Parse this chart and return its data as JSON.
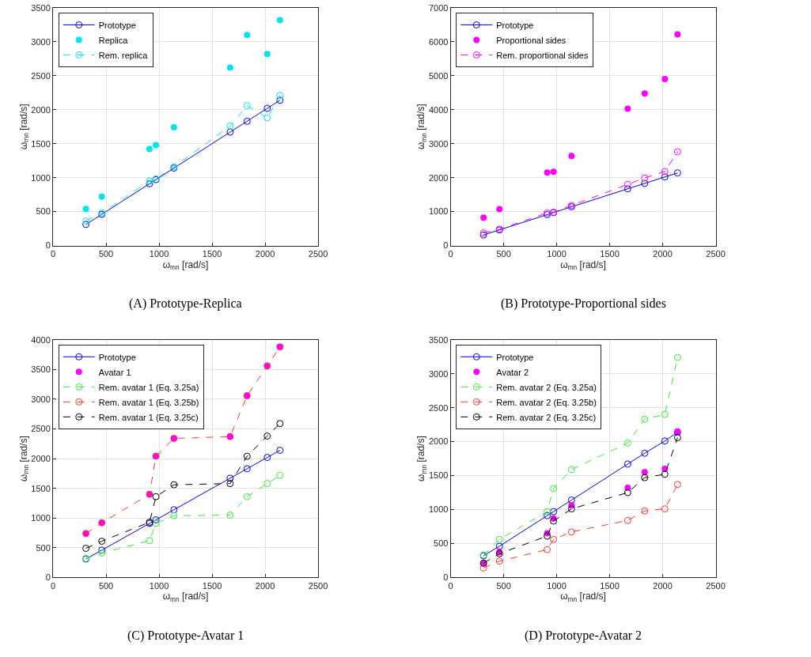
{
  "chart_data": [
    {
      "type": "line",
      "title": "(A) Prototype-Replica",
      "xlabel": "ω$_{mn}$ [rad/s]",
      "ylabel": "ω$_{mn}$ [rad/s]",
      "x": [
        310,
        460,
        910,
        970,
        1140,
        1670,
        1830,
        2020,
        2140
      ],
      "xlim": [
        0,
        2500
      ],
      "xticks": [
        0,
        500,
        1000,
        1500,
        2000,
        2500
      ],
      "ylim": [
        0,
        3500
      ],
      "yticks": [
        0,
        500,
        1000,
        1500,
        2000,
        2500,
        3000,
        3500
      ],
      "grid": true,
      "legend": "top left",
      "marker": "circle",
      "series": [
        {
          "name": "Prototype",
          "line_style": "solid",
          "color": "#0000ff",
          "values": [
            310,
            460,
            910,
            970,
            1140,
            1670,
            1830,
            2020,
            2140
          ]
        },
        {
          "name": "Replica",
          "type": "scatter",
          "color": "#00e5ee",
          "values": [
            540,
            720,
            1420,
            1480,
            1740,
            2620,
            3100,
            2820,
            3320
          ]
        },
        {
          "name": "Rem. replica",
          "line_style": "dashed",
          "color": "#00e5ee",
          "values": [
            360,
            480,
            950,
            980,
            1160,
            1760,
            2060,
            1880,
            2210
          ]
        }
      ]
    },
    {
      "type": "line",
      "title": "(B) Prototype-Proportional sides",
      "xlabel": "ω$_{mn}$ [rad/s]",
      "ylabel": "ω$_{mn}$ [rad/s]",
      "x": [
        310,
        460,
        910,
        970,
        1140,
        1670,
        1830,
        2020,
        2140
      ],
      "xlim": [
        0,
        2500
      ],
      "xticks": [
        0,
        500,
        1000,
        1500,
        2000,
        2500
      ],
      "ylim": [
        0,
        7000
      ],
      "yticks": [
        0,
        1000,
        2000,
        3000,
        4000,
        5000,
        6000,
        7000
      ],
      "grid": true,
      "legend": "top left",
      "marker": "circle",
      "series": [
        {
          "name": "Prototype",
          "line_style": "solid",
          "color": "#0000ff",
          "values": [
            310,
            460,
            910,
            970,
            1140,
            1670,
            1830,
            2020,
            2140
          ]
        },
        {
          "name": "Proportional sides",
          "type": "scatter",
          "color": "#ff00ff",
          "values": [
            820,
            1070,
            2150,
            2170,
            2640,
            4030,
            4480,
            4900,
            6220
          ]
        },
        {
          "name": "Rem. proportional sides",
          "line_style": "dashed",
          "color": "#ff00ff",
          "values": [
            370,
            480,
            960,
            980,
            1180,
            1800,
            1990,
            2180,
            2760
          ]
        }
      ]
    },
    {
      "type": "line",
      "title": "(C) Prototype-Avatar 1",
      "xlabel": "ω$_{mn}$ [rad/s]",
      "ylabel": "ω$_{mn}$ [rad/s]",
      "x": [
        310,
        460,
        910,
        970,
        1140,
        1670,
        1830,
        2020,
        2140
      ],
      "xlim": [
        0,
        2500
      ],
      "xticks": [
        0,
        500,
        1000,
        1500,
        2000,
        2500
      ],
      "ylim": [
        0,
        4000
      ],
      "yticks": [
        0,
        500,
        1000,
        1500,
        2000,
        2500,
        3000,
        3500,
        4000
      ],
      "grid": true,
      "legend": "top left",
      "marker": "circle",
      "series": [
        {
          "name": "Prototype",
          "line_style": "solid",
          "color": "#0000ff",
          "values": [
            310,
            460,
            910,
            970,
            1140,
            1670,
            1830,
            2020,
            2140
          ]
        },
        {
          "name": "Avatar 1",
          "type": "scatter",
          "color": "#ff00ff",
          "values": [
            740,
            920,
            1400,
            2040,
            2340,
            2370,
            3060,
            3560,
            3880
          ]
        },
        {
          "name": "Rem. avatar 1 (Eq. 3.25a)",
          "line_style": "dashed",
          "color": "#33ee33",
          "values": [
            320,
            410,
            620,
            910,
            1040,
            1050,
            1360,
            1580,
            1720
          ]
        },
        {
          "name": "Rem. avatar 1 (Eq. 3.25b)",
          "line_style": "dashed",
          "color": "#ff3333",
          "values": [
            740,
            920,
            1400,
            2040,
            2340,
            2370,
            3060,
            3560,
            3880
          ]
        },
        {
          "name": "Rem. avatar 1 (Eq. 3.25c)",
          "line_style": "dashed",
          "color": "#000000",
          "values": [
            490,
            610,
            930,
            1360,
            1560,
            1580,
            2040,
            2380,
            2590
          ]
        }
      ]
    },
    {
      "type": "line",
      "title": "(D) Prototype-Avatar 2",
      "xlabel": "ω$_{mn}$ [rad/s]",
      "ylabel": "ω$_{mn}$ [rad/s]",
      "x": [
        310,
        460,
        910,
        970,
        1140,
        1670,
        1830,
        2020,
        2140
      ],
      "xlim": [
        0,
        2500
      ],
      "xticks": [
        0,
        500,
        1000,
        1500,
        2000,
        2500
      ],
      "ylim": [
        0,
        3500
      ],
      "yticks": [
        0,
        500,
        1000,
        1500,
        2000,
        2500,
        3000,
        3500
      ],
      "grid": true,
      "legend": "top left",
      "marker": "circle",
      "series": [
        {
          "name": "Prototype",
          "line_style": "solid",
          "color": "#0000ff",
          "values": [
            320,
            460,
            910,
            970,
            1140,
            1670,
            1830,
            2010,
            2140
          ]
        },
        {
          "name": "Avatar 2",
          "type": "scatter",
          "color": "#ff00ff",
          "values": [
            210,
            370,
            650,
            870,
            1060,
            1320,
            1550,
            1600,
            2150
          ]
        },
        {
          "name": "Rem. avatar 2 (Eq. 3.25a)",
          "line_style": "dashed",
          "color": "#33ee33",
          "values": [
            330,
            560,
            970,
            1310,
            1590,
            1980,
            2330,
            2400,
            3240
          ]
        },
        {
          "name": "Rem. avatar 2 (Eq. 3.25b)",
          "line_style": "dashed",
          "color": "#ff3333",
          "values": [
            140,
            240,
            410,
            560,
            670,
            840,
            980,
            1010,
            1370
          ]
        },
        {
          "name": "Rem. avatar 2 (Eq. 3.25c)",
          "line_style": "dashed",
          "color": "#000000",
          "values": [
            210,
            350,
            610,
            830,
            1010,
            1250,
            1470,
            1520,
            2060
          ]
        }
      ]
    }
  ]
}
